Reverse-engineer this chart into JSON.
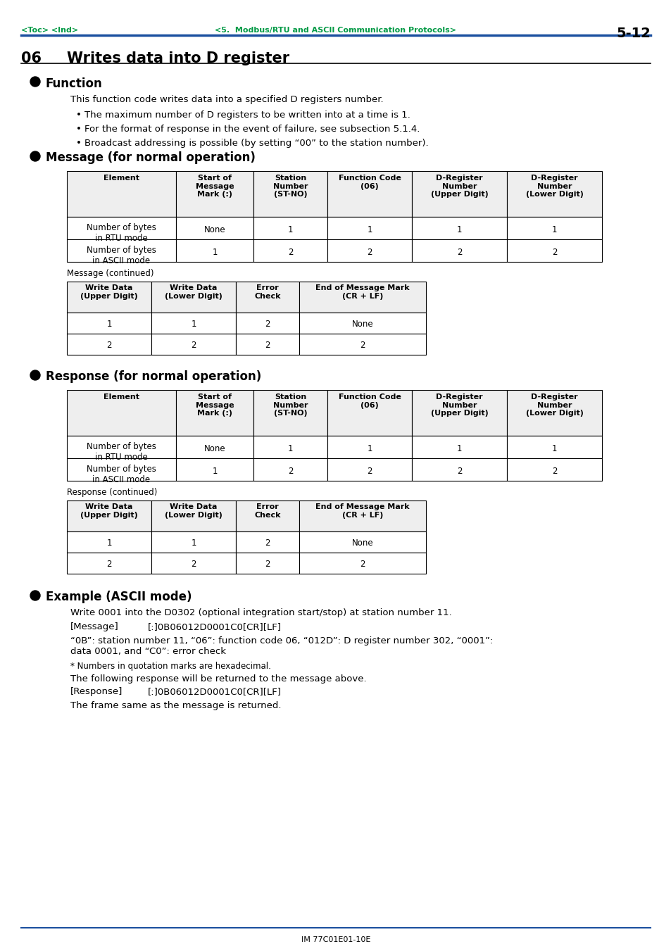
{
  "page_header_left": "<Toc> <Ind>",
  "page_header_center": "<5.  Modbus/RTU and ASCII Communication Protocols>",
  "page_header_right": "5-12",
  "section_number": "06",
  "section_title": "Writes data into D register",
  "function_header": "Function",
  "function_text1": "This function code writes data into a specified D registers number.",
  "function_bullets": [
    "The maximum number of D registers to be written into at a time is 1.",
    "For the format of response in the event of failure, see subsection 5.1.4.",
    "Broadcast addressing is possible (by setting “00” to the station number)."
  ],
  "message_header": "Message (for normal operation)",
  "msg_table1_headers": [
    "Element",
    "Start of\nMessage\nMark (:)",
    "Station\nNumber\n(ST-NO)",
    "Function Code\n(06)",
    "D-Register\nNumber\n(Upper Digit)",
    "D-Register\nNumber\n(Lower Digit)"
  ],
  "msg_table1_rows": [
    [
      "Number of bytes\nin RTU mode",
      "None",
      "1",
      "1",
      "1",
      "1"
    ],
    [
      "Number of bytes\nin ASCII mode",
      "1",
      "2",
      "2",
      "2",
      "2"
    ]
  ],
  "msg_continued_label": "Message (continued)",
  "msg_table2_headers": [
    "Write Data\n(Upper Digit)",
    "Write Data\n(Lower Digit)",
    "Error\nCheck",
    "End of Message Mark\n(CR + LF)"
  ],
  "msg_table2_rows": [
    [
      "1",
      "1",
      "2",
      "None"
    ],
    [
      "2",
      "2",
      "2",
      "2"
    ]
  ],
  "response_header": "Response (for normal operation)",
  "resp_table1_headers": [
    "Element",
    "Start of\nMessage\nMark (:)",
    "Station\nNumber\n(ST-NO)",
    "Function Code\n(06)",
    "D-Register\nNumber\n(Upper Digit)",
    "D-Register\nNumber\n(Lower Digit)"
  ],
  "resp_table1_rows": [
    [
      "Number of bytes\nin RTU mode",
      "None",
      "1",
      "1",
      "1",
      "1"
    ],
    [
      "Number of bytes\nin ASCII mode",
      "1",
      "2",
      "2",
      "2",
      "2"
    ]
  ],
  "resp_continued_label": "Response (continued)",
  "resp_table2_headers": [
    "Write Data\n(Upper Digit)",
    "Write Data\n(Lower Digit)",
    "Error\nCheck",
    "End of Message Mark\n(CR + LF)"
  ],
  "resp_table2_rows": [
    [
      "1",
      "1",
      "2",
      "None"
    ],
    [
      "2",
      "2",
      "2",
      "2"
    ]
  ],
  "example_header": "Example (ASCII mode)",
  "ex_line1": "Write 0001 into the D0302 (optional integration start/stop) at station number 11.",
  "ex_msg_label": "[Message]",
  "ex_msg_value": "[:]0B06012D0001C0[CR][LF]",
  "ex_desc": "“0B”: station number 11, “06”: function code 06, “012D”: D register number 302, “0001”:\ndata 0001, and “C0”: error check",
  "ex_note": "* Numbers in quotation marks are hexadecimal.",
  "ex_resp_intro": "The following response will be returned to the message above.",
  "ex_resp_label": "[Response]",
  "ex_resp_value": "[:]0B06012D0001C0[CR][LF]",
  "ex_last": "The frame same as the message is returned.",
  "footer_text": "IM 77C01E01-10E",
  "header_green": "#009944",
  "line_blue": "#1a4f9f",
  "bg_color": "#ffffff"
}
